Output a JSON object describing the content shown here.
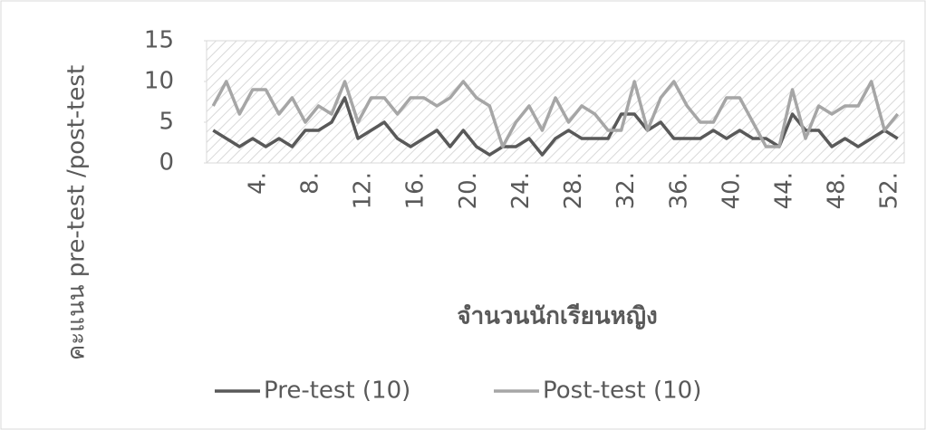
{
  "chart_data": {
    "type": "line",
    "ylabel": "คะแนน pre-test /post-test",
    "xlabel": "จำนวนนักเรียนหญิง",
    "categories": [
      null,
      null,
      null,
      "4.",
      null,
      null,
      null,
      "8.",
      null,
      null,
      null,
      "12.",
      null,
      null,
      null,
      "16.",
      null,
      null,
      null,
      "20.",
      null,
      null,
      null,
      "24.",
      null,
      null,
      null,
      "28.",
      null,
      null,
      null,
      "32.",
      null,
      null,
      null,
      "36.",
      null,
      null,
      null,
      "40.",
      null,
      null,
      null,
      "44.",
      null,
      null,
      null,
      "48.",
      null,
      null,
      null,
      "52.",
      null
    ],
    "series": [
      {
        "name": "Pre-test (10)",
        "color": "#595959",
        "values": [
          4,
          3,
          2,
          3,
          2,
          3,
          2,
          4,
          4,
          5,
          8,
          3,
          4,
          5,
          3,
          2,
          3,
          4,
          2,
          4,
          2,
          1,
          2,
          2,
          3,
          1,
          3,
          4,
          3,
          3,
          3,
          6,
          6,
          4,
          5,
          3,
          3,
          3,
          4,
          3,
          4,
          3,
          3,
          2,
          6,
          4,
          4,
          2,
          3,
          2,
          3,
          4,
          3
        ]
      },
      {
        "name": "Post-test (10)",
        "color": "#a6a6a6",
        "values": [
          7,
          10,
          6,
          9,
          9,
          6,
          8,
          5,
          7,
          6,
          10,
          5,
          8,
          8,
          6,
          8,
          8,
          7,
          8,
          10,
          8,
          7,
          2,
          5,
          7,
          4,
          8,
          5,
          7,
          6,
          4,
          4,
          10,
          4,
          8,
          10,
          7,
          5,
          5,
          8,
          8,
          5,
          2,
          2,
          9,
          3,
          7,
          6,
          7,
          7,
          10,
          4,
          6
        ]
      }
    ],
    "ylim": [
      0,
      15
    ],
    "yticks": [
      0,
      5,
      10,
      15
    ],
    "legend": "bottom"
  }
}
